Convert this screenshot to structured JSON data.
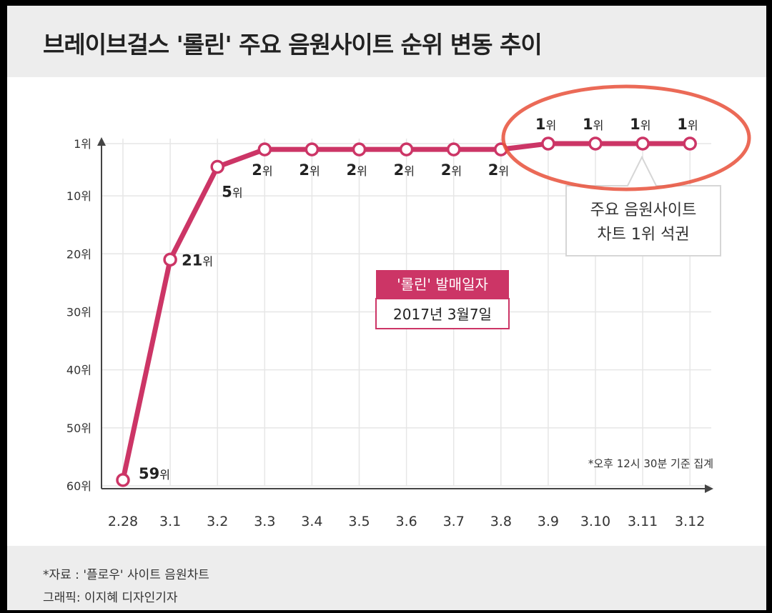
{
  "title": "브레이브걸스 '롤린' 주요 음원사이트 순위 변동 추이",
  "footer": {
    "source": "*자료 : '플로우' 사이트 음원차트",
    "credit": "그래픽: 이지혜 디자인기자"
  },
  "annotations": {
    "release_label": "'롤린' 발매일자",
    "release_date": "2017년 3월7일",
    "callout_line1": "주요 음원사이트",
    "callout_line2": "차트 1위 석권",
    "note": "*오후 12시 30분 기준 집계",
    "rank_unit": "위"
  },
  "colors": {
    "line": "#cc3566",
    "highlight_circle": "#e8503a",
    "grid": "#e6e6e6",
    "axis": "#444444"
  },
  "chart_data": {
    "type": "line",
    "title": "브레이브걸스 '롤린' 주요 음원사이트 순위 변동 추이",
    "categories": [
      "2.28",
      "3.1",
      "3.2",
      "3.3",
      "3.4",
      "3.5",
      "3.6",
      "3.7",
      "3.8",
      "3.9",
      "3.10",
      "3.11",
      "3.12"
    ],
    "series": [
      {
        "values": [
          59,
          21,
          5,
          2,
          2,
          2,
          2,
          2,
          2,
          1,
          1,
          1,
          1
        ]
      }
    ],
    "y_ticks": [
      "1위",
      "10위",
      "20위",
      "30위",
      "40위",
      "50위",
      "60위"
    ],
    "y_tick_values": [
      1,
      10,
      20,
      30,
      40,
      50,
      60
    ],
    "y_inverted": true,
    "ylim": [
      1,
      60
    ],
    "grid": true
  }
}
